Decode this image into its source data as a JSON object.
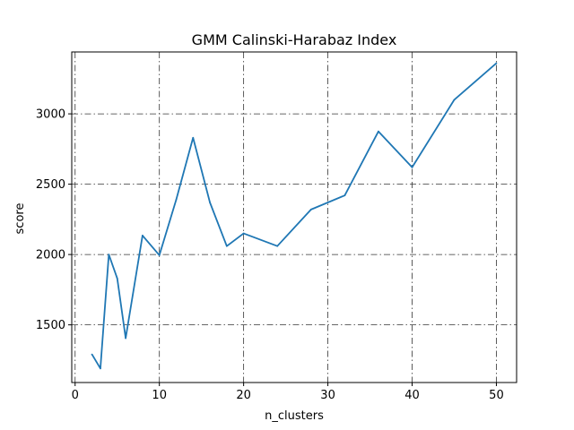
{
  "chart_data": {
    "type": "line",
    "title": "GMM Calinski-Harabaz Index",
    "xlabel": "n_clusters",
    "ylabel": "score",
    "xlim": [
      -0.4,
      52.4
    ],
    "ylim": [
      1090,
      3440
    ],
    "xticks": [
      0,
      10,
      20,
      30,
      40,
      50
    ],
    "yticks": [
      1500,
      2000,
      2500,
      3000
    ],
    "grid": true,
    "grid_style": "dash-dot",
    "series": [
      {
        "color": "#1f77b4",
        "x": [
          2,
          3,
          4,
          5,
          6,
          8,
          10,
          12,
          14,
          16,
          18,
          20,
          24,
          28,
          32,
          36,
          40,
          45,
          50
        ],
        "y": [
          1290,
          1190,
          2000,
          1830,
          1405,
          2135,
          1995,
          2390,
          2830,
          2370,
          2060,
          2150,
          2060,
          2320,
          2420,
          2875,
          2620,
          3100,
          3360
        ]
      }
    ]
  }
}
